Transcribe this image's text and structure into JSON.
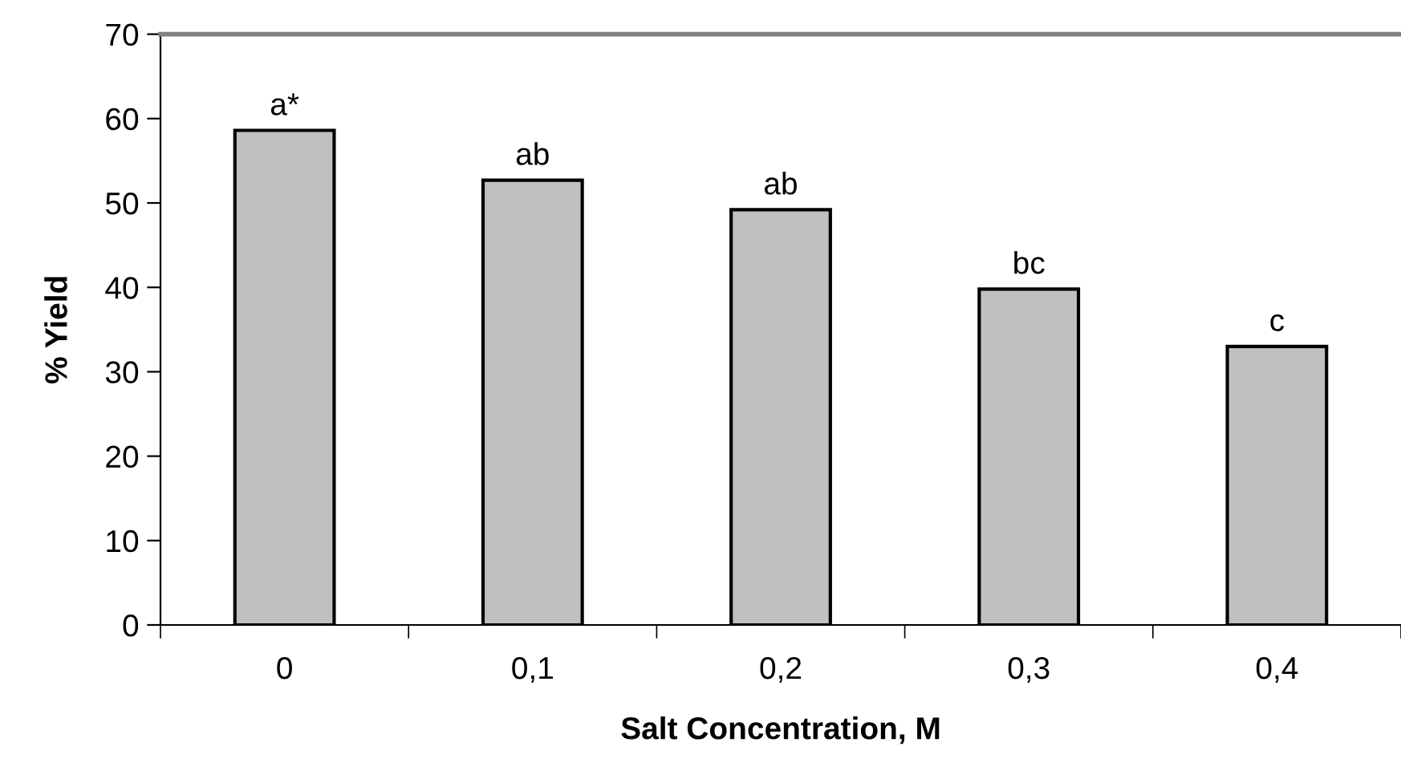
{
  "chart_data": {
    "type": "bar",
    "xlabel": "Salt Concentration, M",
    "ylabel": "% Yield",
    "categories": [
      "0",
      "0,1",
      "0,2",
      "0,3",
      "0,4"
    ],
    "values": [
      58.6,
      52.7,
      49.2,
      39.8,
      33.0
    ],
    "color": "#c0c0c0",
    "ylim": [
      0,
      70
    ],
    "yticks": [
      0,
      10,
      20,
      30,
      40,
      50,
      60,
      70
    ],
    "grid": false,
    "legend": false,
    "annotations": [
      {
        "text": "a*",
        "x": "0",
        "y": 58.6
      },
      {
        "text": "ab",
        "x": "0,1",
        "y": 52.7
      },
      {
        "text": "ab",
        "x": "0,2",
        "y": 49.2
      },
      {
        "text": "bc",
        "x": "0,3",
        "y": 39.8
      },
      {
        "text": "c",
        "x": "0,4",
        "y": 33.0
      }
    ]
  }
}
